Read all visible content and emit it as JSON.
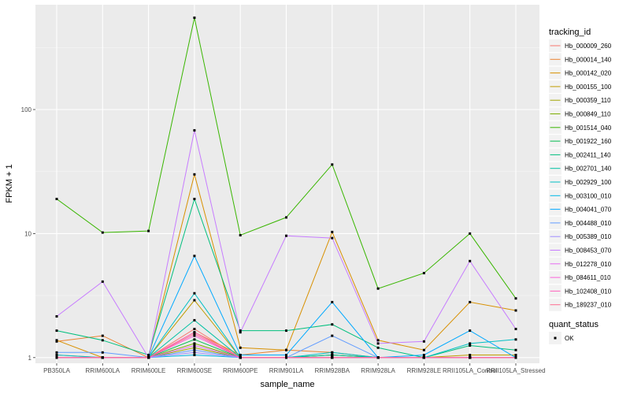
{
  "chart_data": {
    "type": "line",
    "xlabel": "sample_name",
    "ylabel": "FPKM + 1",
    "y_scale": "log10",
    "ylim": [
      0.9,
      700
    ],
    "y_ticks": [
      {
        "value": 1,
        "label": "1"
      },
      {
        "value": 10,
        "label": "10"
      },
      {
        "value": 100,
        "label": "100"
      }
    ],
    "categories": [
      "PB350LA",
      "RRIM600LA",
      "RRIM600LE",
      "RRIM600SE",
      "RRIM600PE",
      "RRIM901LA",
      "RRIM928BA",
      "RRIM928LA",
      "RRIM928LE",
      "RRII105LA_Control",
      "RRII105LA_Stressed"
    ],
    "category_tick_labels": [
      "PB350LA",
      "RRIM600LA",
      "RRIM600LE",
      "RRIM600SE",
      "RRIM600PE",
      "RRIM901LA",
      "RRIM928BA",
      "RRIM928LA",
      "RRIM928LE",
      "RRII105LA_Control",
      "RRII105LA_Stressed"
    ],
    "legend": {
      "title": "tracking_id",
      "placement": "right",
      "quant_title": "quant_status",
      "quant_label": "OK"
    },
    "grid": true,
    "panel_color": "#ebebeb",
    "series": [
      {
        "name": "Hb_000009_260",
        "color": "#F8766D",
        "values": [
          1.05,
          1.0,
          1.0,
          1.7,
          1.0,
          1.0,
          1.05,
          1.0,
          1.0,
          1.0,
          1.0
        ]
      },
      {
        "name": "Hb_000014_140",
        "color": "#EA8331",
        "values": [
          1.35,
          1.5,
          1.0,
          1.6,
          1.05,
          1.15,
          1.1,
          1.0,
          1.0,
          1.0,
          1.0
        ]
      },
      {
        "name": "Hb_000142_020",
        "color": "#D89000",
        "values": [
          1.38,
          1.0,
          1.0,
          30,
          1.2,
          1.15,
          10.3,
          1.38,
          1.15,
          2.8,
          2.4
        ]
      },
      {
        "name": "Hb_000155_100",
        "color": "#C09B00",
        "values": [
          1.0,
          1.0,
          1.0,
          2.9,
          1.0,
          1.0,
          1.0,
          1.0,
          1.0,
          1.05,
          1.05
        ]
      },
      {
        "name": "Hb_000359_110",
        "color": "#A3A500",
        "values": [
          1.0,
          1.0,
          1.0,
          1.2,
          1.0,
          1.0,
          1.0,
          1.0,
          1.0,
          1.0,
          1.0
        ]
      },
      {
        "name": "Hb_000849_110",
        "color": "#7CAE00",
        "values": [
          1.0,
          1.0,
          1.0,
          1.3,
          1.0,
          1.0,
          1.05,
          1.0,
          1.0,
          1.0,
          1.0
        ]
      },
      {
        "name": "Hb_001514_040",
        "color": "#39B600",
        "values": [
          19,
          10.2,
          10.5,
          550,
          9.7,
          13.5,
          36,
          3.6,
          4.8,
          10,
          3.0
        ]
      },
      {
        "name": "Hb_001922_160",
        "color": "#00BB4E",
        "values": [
          1.0,
          1.0,
          1.0,
          1.4,
          1.0,
          1.0,
          1.0,
          1.0,
          1.0,
          1.0,
          1.0
        ]
      },
      {
        "name": "Hb_002411_140",
        "color": "#00BF7D",
        "values": [
          1.65,
          1.38,
          1.05,
          19,
          1.65,
          1.65,
          1.85,
          1.2,
          1.0,
          1.25,
          1.15
        ]
      },
      {
        "name": "Hb_002701_140",
        "color": "#00C1A3",
        "values": [
          1.0,
          1.0,
          1.0,
          2.0,
          1.0,
          1.0,
          1.05,
          1.0,
          1.0,
          1.0,
          1.0
        ]
      },
      {
        "name": "Hb_002929_100",
        "color": "#00BFC4",
        "values": [
          1.05,
          1.0,
          1.0,
          3.3,
          1.0,
          1.0,
          1.1,
          1.0,
          1.0,
          1.3,
          1.4
        ]
      },
      {
        "name": "Hb_003100_010",
        "color": "#00B8E7",
        "values": [
          1.0,
          1.0,
          1.0,
          1.05,
          1.0,
          1.0,
          1.0,
          1.0,
          1.0,
          1.0,
          1.0
        ]
      },
      {
        "name": "Hb_004041_070",
        "color": "#00A9FF",
        "values": [
          1.0,
          1.0,
          1.0,
          6.6,
          1.05,
          1.05,
          2.8,
          1.0,
          1.05,
          1.65,
          1.0
        ]
      },
      {
        "name": "Hb_004488_010",
        "color": "#619CFF",
        "values": [
          1.1,
          1.1,
          1.0,
          1.15,
          1.0,
          1.0,
          1.5,
          1.0,
          1.0,
          1.0,
          1.0
        ]
      },
      {
        "name": "Hb_005389_010",
        "color": "#9F8CFF",
        "values": [
          1.0,
          1.0,
          1.0,
          1.1,
          1.0,
          1.0,
          1.0,
          1.0,
          1.0,
          1.0,
          1.0
        ]
      },
      {
        "name": "Hb_008453_070",
        "color": "#C77CFF",
        "values": [
          2.15,
          4.1,
          1.0,
          68,
          1.6,
          9.6,
          9.2,
          1.3,
          1.35,
          6.0,
          1.7
        ]
      },
      {
        "name": "Hb_012278_010",
        "color": "#E76BF3",
        "values": [
          1.0,
          1.0,
          1.0,
          1.25,
          1.0,
          1.0,
          1.0,
          1.0,
          1.0,
          1.0,
          1.0
        ]
      },
      {
        "name": "Hb_084611_010",
        "color": "#FA62DB",
        "values": [
          1.0,
          1.0,
          1.0,
          1.5,
          1.0,
          1.0,
          1.0,
          1.0,
          1.0,
          1.0,
          1.0
        ]
      },
      {
        "name": "Hb_102408_010",
        "color": "#FF62BC",
        "values": [
          1.0,
          1.0,
          1.0,
          1.6,
          1.0,
          1.0,
          1.0,
          1.0,
          1.0,
          1.0,
          1.0
        ]
      },
      {
        "name": "Hb_189237_010",
        "color": "#FF6C91",
        "values": [
          1.0,
          1.0,
          1.0,
          1.55,
          1.0,
          1.0,
          1.0,
          1.0,
          1.0,
          1.0,
          1.0
        ]
      }
    ]
  }
}
